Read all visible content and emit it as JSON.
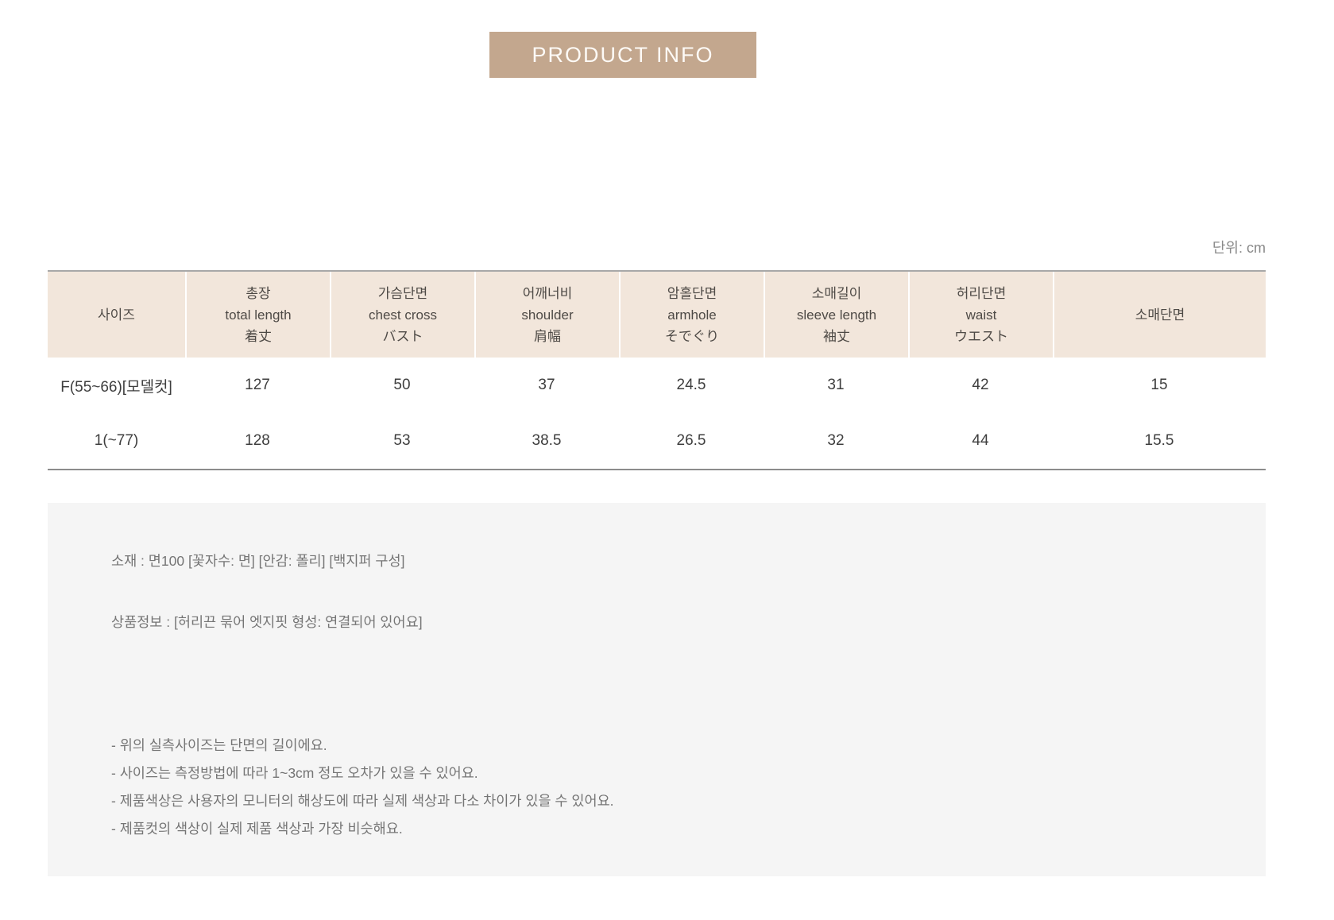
{
  "colors": {
    "banner_bg": "#c3a78e",
    "banner_text": "#fdfaf6",
    "table_header_bg": "#f2e6db",
    "table_top_border": "#a8a8a8",
    "table_bottom_border": "#8c8c8c",
    "info_box_bg": "#f5f5f5",
    "body_text": "#3e3e3e",
    "muted_text": "#757575"
  },
  "banner": {
    "label": "PRODUCT INFO"
  },
  "unit_label": "단위: cm",
  "size_table": {
    "columns": [
      {
        "ko": "사이즈"
      },
      {
        "ko": "총장",
        "en": "total length",
        "ja": "着丈"
      },
      {
        "ko": "가슴단면",
        "en": "chest cross",
        "ja": "バスト"
      },
      {
        "ko": "어깨너비",
        "en": "shoulder",
        "ja": "肩幅"
      },
      {
        "ko": "암홀단면",
        "en": "armhole",
        "ja": "そでぐり"
      },
      {
        "ko": "소매길이",
        "en": "sleeve length",
        "ja": "袖丈"
      },
      {
        "ko": "허리단면",
        "en": "waist",
        "ja": "ウエスト"
      },
      {
        "ko": "소매단면"
      }
    ],
    "rows": [
      {
        "size": "F(55~66)[모델컷]",
        "values": [
          "127",
          "50",
          "37",
          "24.5",
          "31",
          "42",
          "15"
        ]
      },
      {
        "size": "1(~77)",
        "values": [
          "128",
          "53",
          "38.5",
          "26.5",
          "32",
          "44",
          "15.5"
        ]
      }
    ]
  },
  "details": {
    "material_line": "소재 : 면100 [꽃자수: 면] [안감: 폴리] [백지퍼 구성]",
    "product_info_line": "상품정보 : [허리끈 묶어 엣지핏 형성: 연결되어 있어요]",
    "notes": [
      "- 위의 실측사이즈는 단면의 길이에요.",
      "- 사이즈는 측정방법에 따라 1~3cm 정도 오차가 있을 수 있어요.",
      "- 제품색상은 사용자의 모니터의 해상도에 따라 실제 색상과 다소 차이가 있을 수 있어요.",
      "- 제품컷의 색상이 실제 제품 색상과 가장 비슷해요."
    ]
  }
}
